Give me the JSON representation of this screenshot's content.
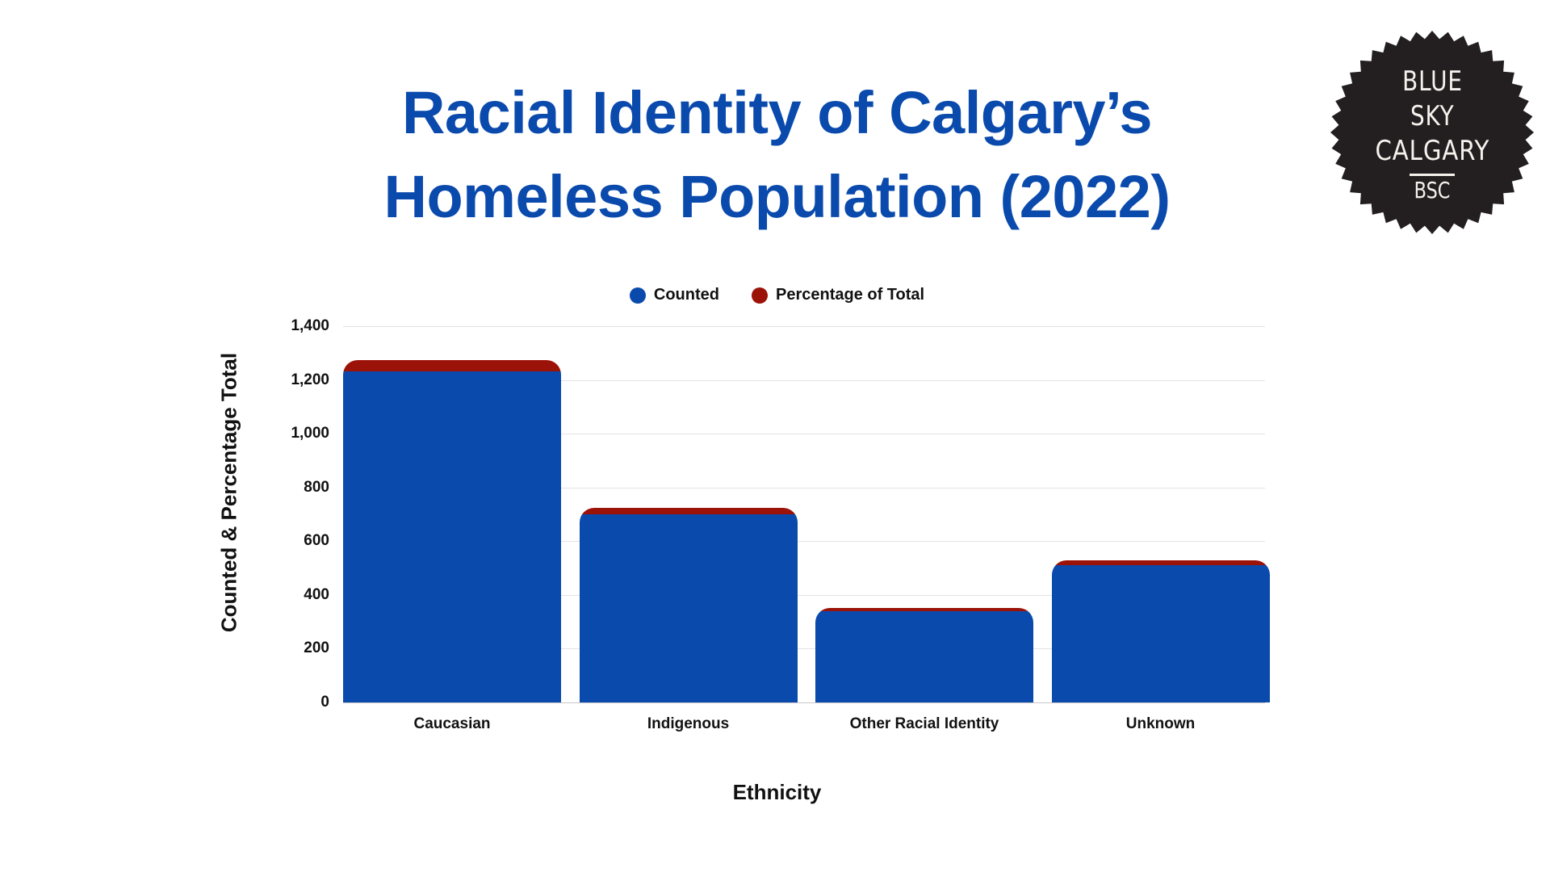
{
  "header": {
    "title_line1": "Racial Identity of Calgary’s",
    "title_line2": "Homeless Population (2022)"
  },
  "logo": {
    "line1": "BLUE",
    "line2": "SKY",
    "line3": "CALGARY",
    "abbr": "BSC",
    "color": "#231f20",
    "icon": "scalloped-seal-badge"
  },
  "legend": [
    {
      "label": "Counted",
      "color": "#0a4aad"
    },
    {
      "label": "Percentage of Total",
      "color": "#9b1208"
    }
  ],
  "axes": {
    "y_title": "Counted & Percentage Total",
    "x_title": "Ethnicity",
    "y_ticks": [
      "0",
      "200",
      "400",
      "600",
      "800",
      "1,000",
      "1,200",
      "1,400"
    ]
  },
  "chart_data": {
    "type": "bar",
    "stacked": true,
    "title": "Racial Identity of Calgary’s Homeless Population (2022)",
    "xlabel": "Ethnicity",
    "ylabel": "Counted & Percentage Total",
    "ylim": [
      0,
      1400
    ],
    "yticks": [
      0,
      200,
      400,
      600,
      800,
      1000,
      1200,
      1400
    ],
    "grid": true,
    "legend_position": "top",
    "categories": [
      "Caucasian",
      "Indigenous",
      "Other Racial Identity",
      "Unknown"
    ],
    "series": [
      {
        "name": "Counted",
        "color": "#0a4aad",
        "values": [
          1231,
          700,
          339,
          511
        ]
      },
      {
        "name": "Percentage of Total",
        "color": "#9b1208",
        "values": [
          44,
          25,
          12,
          18
        ]
      }
    ]
  }
}
